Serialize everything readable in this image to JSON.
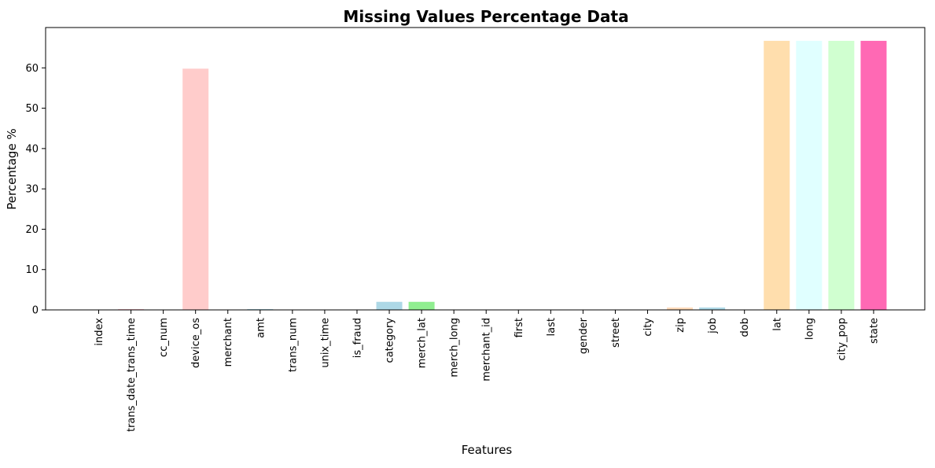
{
  "chart_data": {
    "type": "bar",
    "title": "Missing Values Percentage Data",
    "xlabel": "Features",
    "ylabel": "Percentage %",
    "ylim": [
      0,
      70
    ],
    "yticks": [
      0,
      10,
      20,
      30,
      40,
      50,
      60
    ],
    "grid": false,
    "categories": [
      "index",
      "trans_date_trans_time",
      "cc_num",
      "device_os",
      "merchant",
      "amt",
      "trans_num",
      "unix_time",
      "is_fraud",
      "category",
      "merch_lat",
      "merch_long",
      "merchant_id",
      "first",
      "last",
      "gender",
      "street",
      "city",
      "zip",
      "job",
      "dob",
      "lat",
      "long",
      "city_pop",
      "state"
    ],
    "values": [
      0,
      0.2,
      0,
      59.8,
      0,
      0.2,
      0,
      0,
      0,
      2.0,
      2.0,
      0,
      0,
      0,
      0,
      0,
      0,
      0,
      0.6,
      0.6,
      0,
      66.7,
      66.7,
      66.7,
      66.7
    ],
    "colors": [
      "#ffffff",
      "#ffc0cb",
      "#ffffff",
      "#ffcccb",
      "#ffffff",
      "#add8e6",
      "#ffffff",
      "#ffffff",
      "#ffffff",
      "#add8e6",
      "#90ee90",
      "#ffffff",
      "#ffffff",
      "#ffffff",
      "#ffffff",
      "#ffffff",
      "#ffffff",
      "#ffffff",
      "#ffdab9",
      "#add8e6",
      "#ffffff",
      "#ffdead",
      "#e0ffff",
      "#d0ffd0",
      "#ff69b4"
    ]
  }
}
